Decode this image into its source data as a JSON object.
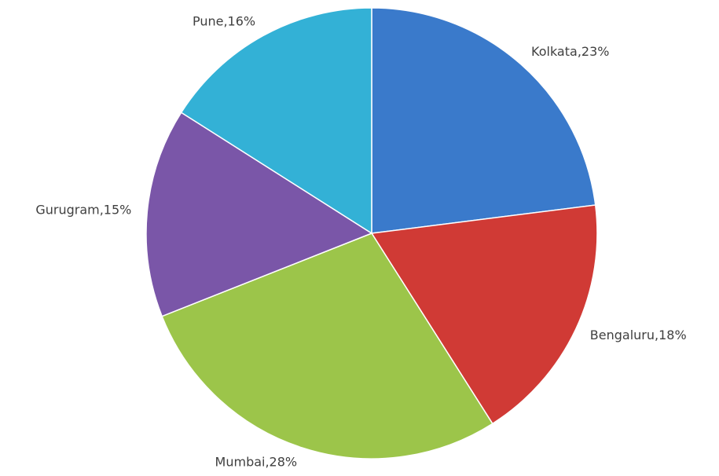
{
  "chart_data": {
    "type": "pie",
    "values": [
      23,
      18,
      28,
      15,
      16
    ],
    "value_labels": [
      "Kolkata,23%",
      "Bengaluru,18%",
      "Mumbai,28%",
      "Gurugram,15%",
      "Pune,16%"
    ],
    "colors": [
      "#3a7acb",
      "#d03a35",
      "#9cc54a",
      "#7a56a8",
      "#33b1d6"
    ]
  }
}
